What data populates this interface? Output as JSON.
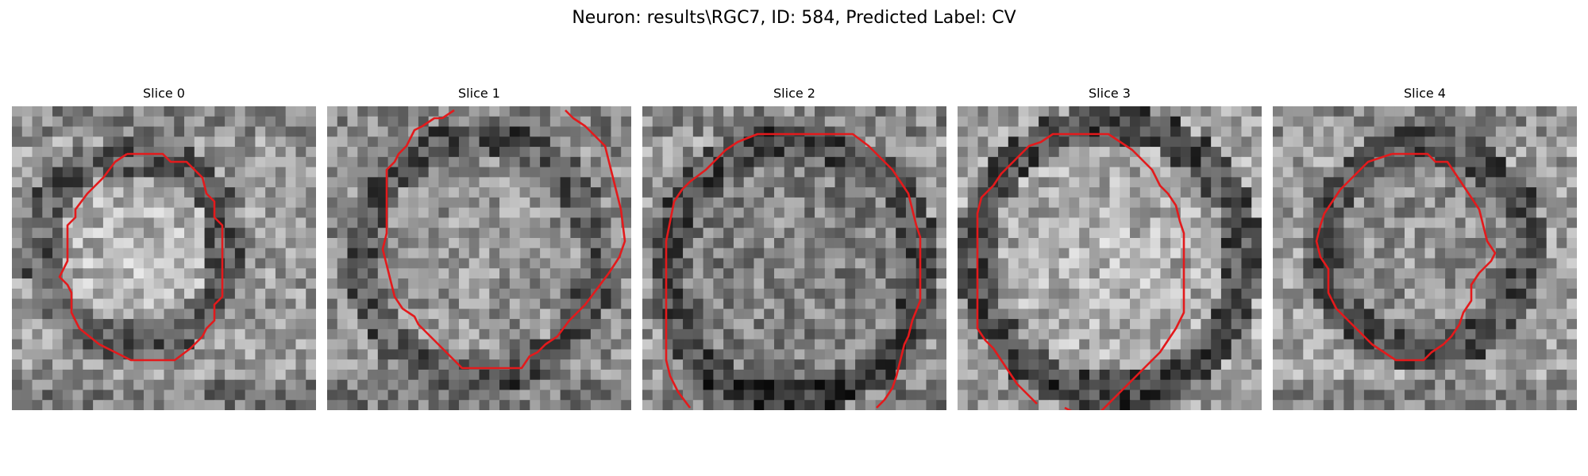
{
  "figure": {
    "title": "Neuron: results\\RGC7, ID: 584, Predicted Label: CV"
  },
  "slices": [
    {
      "label": "Slice 0"
    },
    {
      "label": "Slice 1"
    },
    {
      "label": "Slice 2"
    },
    {
      "label": "Slice 3"
    },
    {
      "label": "Slice 4"
    }
  ],
  "colors": {
    "contour": "#e31a1c"
  }
}
